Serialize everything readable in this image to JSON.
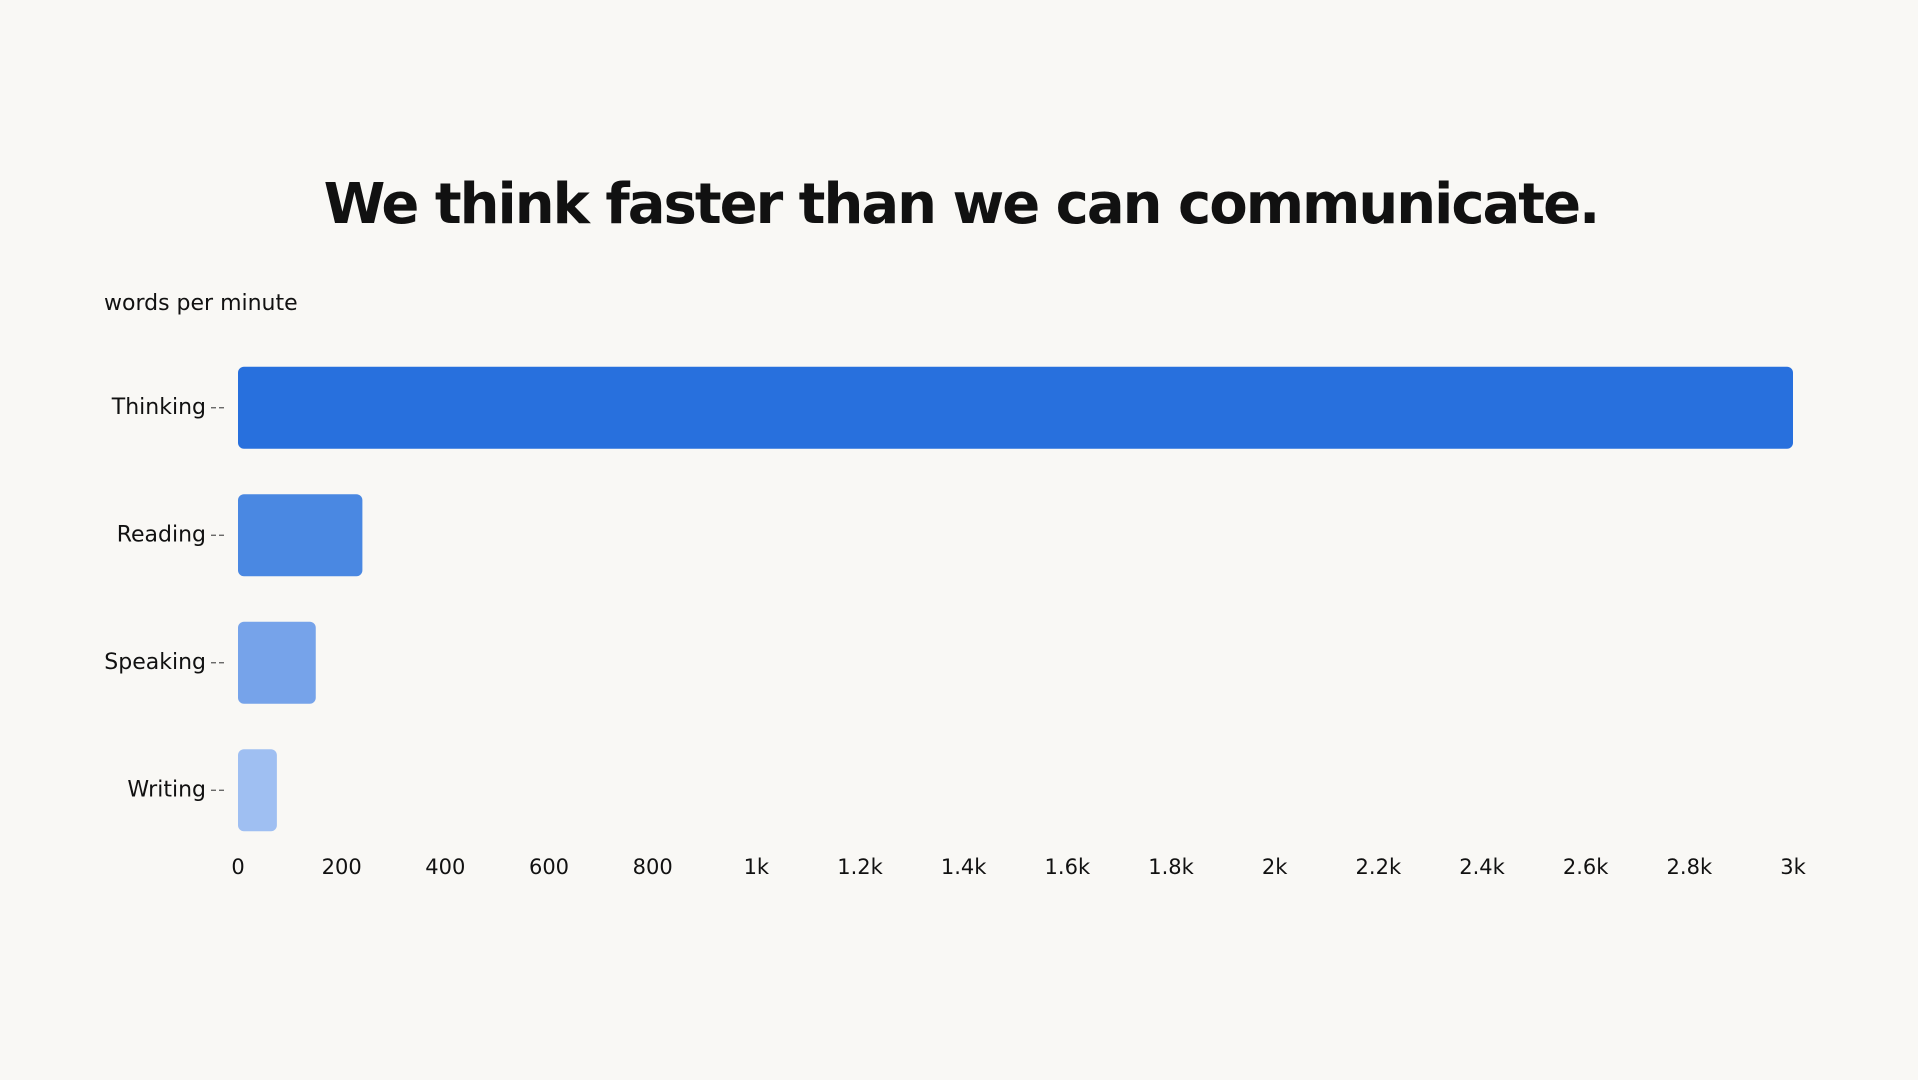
{
  "chart_data": {
    "type": "bar",
    "orientation": "horizontal",
    "title": "We think faster than we can communicate.",
    "axis_label": "words per minute",
    "categories": [
      "Thinking",
      "Reading",
      "Speaking",
      "Writing"
    ],
    "values": [
      3000,
      240,
      150,
      75
    ],
    "colors": [
      "#2870dd",
      "#4a88e2",
      "#76a3ea",
      "#9fbff2"
    ],
    "xlim": [
      0,
      3000
    ],
    "xticks": [
      0,
      200,
      400,
      600,
      800,
      {
        "value": 1000,
        "label": "1k"
      },
      {
        "value": 1200,
        "label": "1.2k"
      },
      {
        "value": 1400,
        "label": "1.4k"
      },
      {
        "value": 1600,
        "label": "1.6k"
      },
      {
        "value": 1800,
        "label": "1.8k"
      },
      {
        "value": 2000,
        "label": "2k"
      },
      {
        "value": 2200,
        "label": "2.2k"
      },
      {
        "value": 2400,
        "label": "2.4k"
      },
      {
        "value": 2600,
        "label": "2.6k"
      },
      {
        "value": 2800,
        "label": "2.8k"
      },
      {
        "value": 3000,
        "label": "3k"
      }
    ],
    "grid": false
  }
}
